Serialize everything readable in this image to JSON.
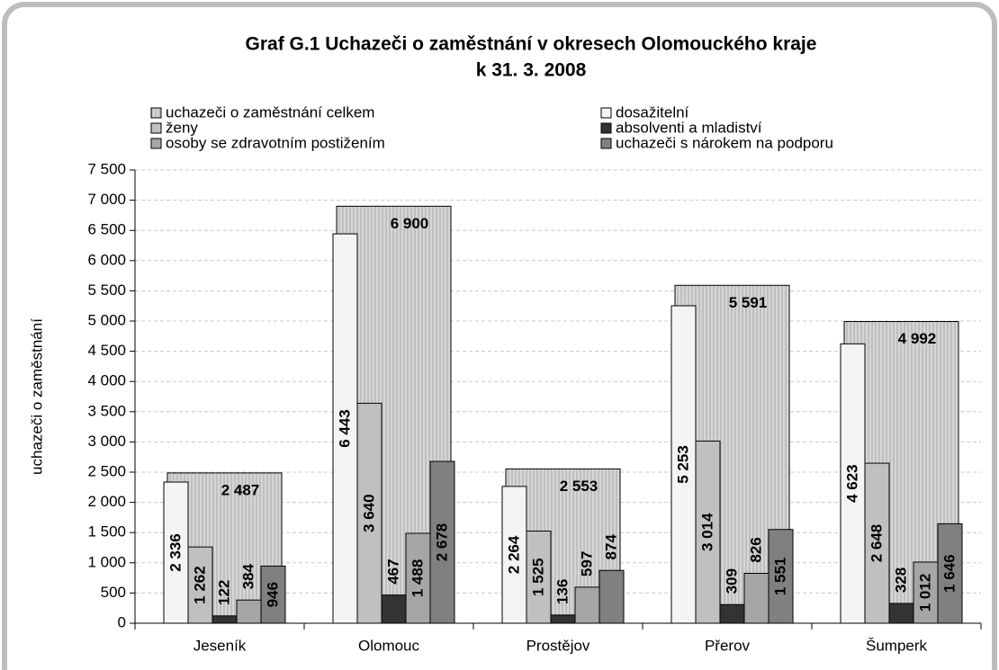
{
  "chart_data": {
    "type": "bar",
    "title": [
      "Graf G.1 Uchazeči o zaměstnání v okresech Olomouckého kraje",
      "k 31. 3. 2008"
    ],
    "y_label": "uchazeči o zaměstnání",
    "categories": [
      "Jeseník",
      "Olomouc",
      "Prostějov",
      "Přerov",
      "Šumperk"
    ],
    "series": [
      {
        "name": "uchazeči o zaměstnání celkem",
        "color": "#c8c8c8",
        "values": [
          2487,
          6900,
          2553,
          5591,
          4992
        ],
        "value_labels": [
          "2 487",
          "6 900",
          "2 553",
          "5 591",
          "4 992"
        ]
      },
      {
        "name": "dosažitelní",
        "color": "#f4f4f4",
        "values": [
          2336,
          6443,
          2264,
          5253,
          4623
        ],
        "value_labels": [
          "2 336",
          "6 443",
          "2 264",
          "5 253",
          "4 623"
        ]
      },
      {
        "name": "ženy",
        "color": "#c0c0c0",
        "values": [
          1262,
          3640,
          1525,
          3014,
          2648
        ],
        "value_labels": [
          "1 262",
          "3 640",
          "1 525",
          "3 014",
          "2 648"
        ]
      },
      {
        "name": "absolventi a mladiství",
        "color": "#333333",
        "values": [
          122,
          467,
          136,
          309,
          328
        ]
      },
      {
        "name": "osoby se zdravotním postižením",
        "color": "#a6a6a6",
        "values": [
          384,
          1488,
          597,
          826,
          1012
        ],
        "value_labels": [
          "384",
          "1 488",
          "597",
          "826",
          "1 012"
        ]
      },
      {
        "name": "uchazeči s nárokem na podporu",
        "color": "#808080",
        "values": [
          946,
          2678,
          874,
          1551,
          1646
        ],
        "value_labels": [
          "946",
          "2 678",
          "874",
          "1 551",
          "1 646"
        ]
      }
    ],
    "ylim": [
      0,
      7500
    ],
    "yticks": [
      0,
      500,
      {
        "value": 1000,
        "label": "1 000"
      },
      {
        "value": 1500,
        "label": "1 500"
      },
      {
        "value": 2000,
        "label": "2 000"
      },
      {
        "value": 2500,
        "label": "2 500"
      },
      {
        "value": 3000,
        "label": "3 000"
      },
      {
        "value": 3500,
        "label": "3 500"
      },
      {
        "value": 4000,
        "label": "4 000"
      },
      {
        "value": 4500,
        "label": "4 500"
      },
      {
        "value": 5000,
        "label": "5 000"
      },
      {
        "value": 5500,
        "label": "5 500"
      },
      {
        "value": 6000,
        "label": "6 000"
      },
      {
        "value": 6500,
        "label": "6 500"
      },
      {
        "value": 7000,
        "label": "7 000"
      },
      {
        "value": 7500,
        "label": "7 500"
      }
    ],
    "grid": true,
    "legend": "top"
  }
}
